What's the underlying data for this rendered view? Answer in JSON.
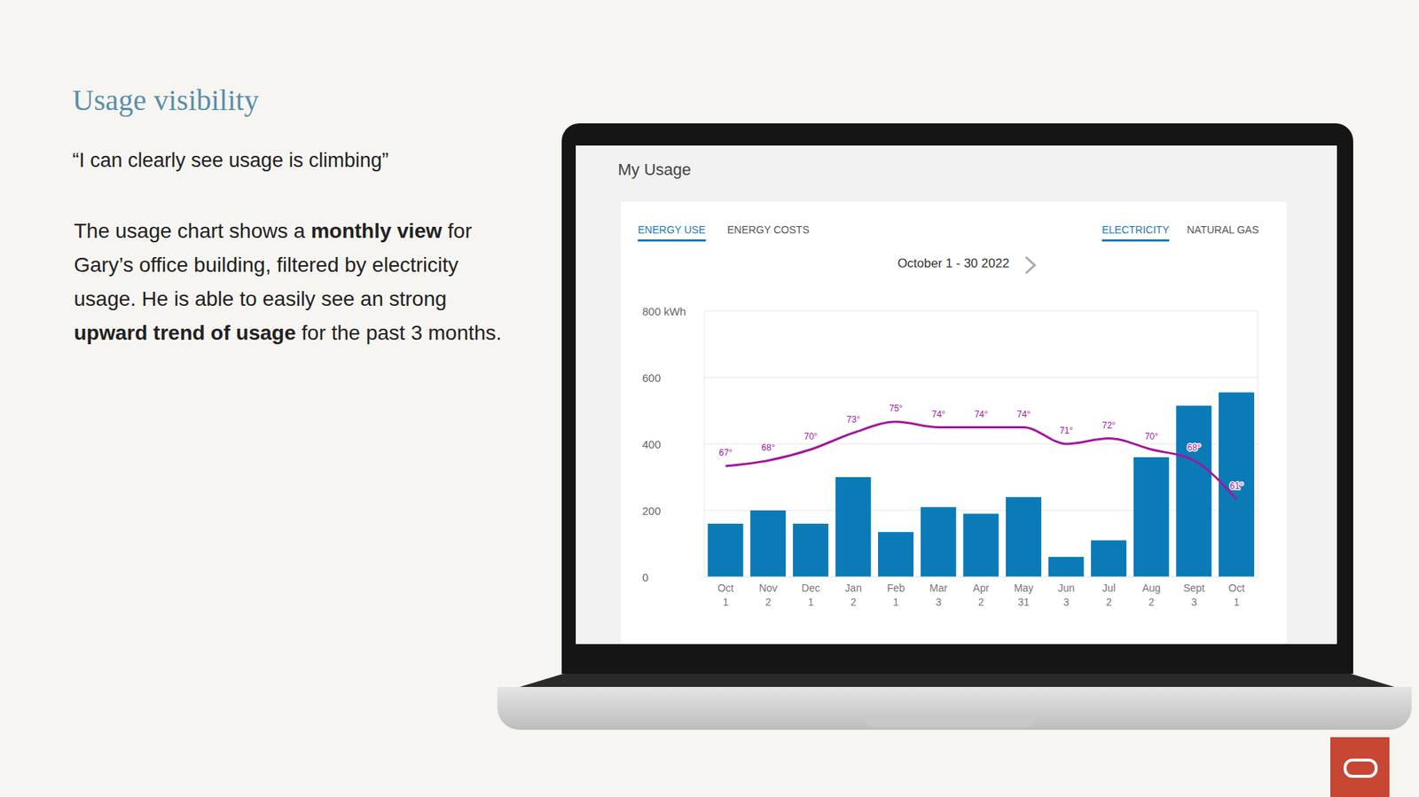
{
  "title": "Usage visibility",
  "quote": "“I can clearly see usage is climbing”",
  "body": [
    {
      "text": "The usage chart shows a ",
      "bold": false
    },
    {
      "text": "monthly view",
      "bold": true
    },
    {
      "text": " for Gary’s office building, filtered by electricity usage. He is able to easily see an strong ",
      "bold": false
    },
    {
      "text": "upward trend of usage",
      "bold": true
    },
    {
      "text": " for the past 3 months.",
      "bold": false
    }
  ],
  "screen": {
    "heading": "My Usage",
    "tabs_left": [
      {
        "text": "ENERGY USE",
        "active": true
      },
      {
        "text": "ENERGY COSTS",
        "active": false
      }
    ],
    "tabs_right": [
      {
        "text": "ELECTRICITY",
        "active": true
      },
      {
        "text": "NATURAL GAS",
        "active": false
      }
    ],
    "period": "October 1 - 30 2022"
  },
  "chart_data": {
    "type": "bar",
    "categories": [
      "Oct 1",
      "Nov 2",
      "Dec 1",
      "Jan 2",
      "Feb 1",
      "Mar 3",
      "Apr 2",
      "May 31",
      "Jun 3",
      "Jul 2",
      "Aug 2",
      "Sept 3",
      "Oct 1"
    ],
    "series": [
      {
        "type": "bar",
        "color": "#0a7bb6",
        "values": [
          160,
          200,
          160,
          300,
          135,
          210,
          190,
          240,
          60,
          110,
          360,
          515,
          555
        ]
      },
      {
        "type": "line",
        "axis": "y2",
        "color": "#a3169f",
        "data_labels": true,
        "values": [
          67,
          68,
          70,
          73,
          75,
          74,
          74,
          74,
          71,
          72,
          70,
          68,
          61
        ],
        "value_labels": [
          "67°",
          "68°",
          "70°",
          "73°",
          "75°",
          "74°",
          "74°",
          "74°",
          "71°",
          "72°",
          "70°",
          "68°",
          "61°"
        ]
      }
    ],
    "ylim": [
      0,
      800
    ],
    "yticks": [
      0,
      200,
      400,
      600,
      {
        "value": 800,
        "label": "800 kWh"
      }
    ],
    "y2lim": [
      47,
      95
    ],
    "y2ticks": [],
    "grid": true
  }
}
